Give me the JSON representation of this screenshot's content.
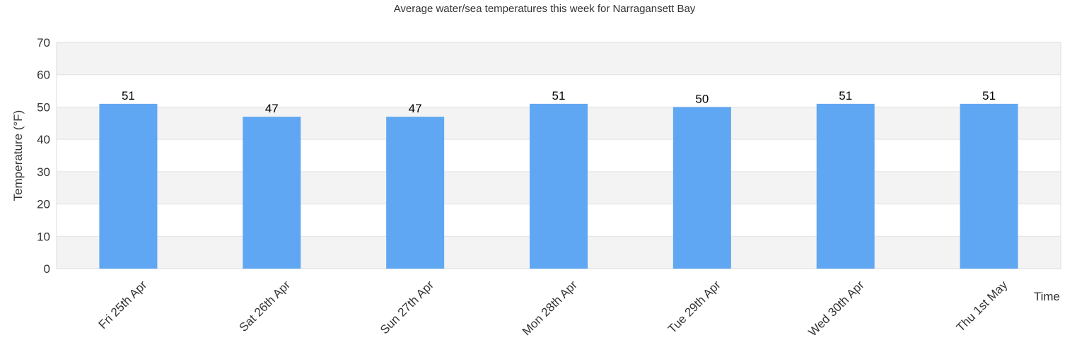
{
  "chart_data": {
    "type": "bar",
    "title": "Average water/sea temperatures this week for Narragansett Bay",
    "xlabel": "Time",
    "ylabel": "Temperature (°F)",
    "categories": [
      "Fri 25th Apr",
      "Sat 26th Apr",
      "Sun 27th Apr",
      "Mon 28th Apr",
      "Tue 29th Apr",
      "Wed 30th Apr",
      "Thu 1st May"
    ],
    "values": [
      51,
      47,
      47,
      51,
      50,
      51,
      51
    ],
    "ylim": [
      0,
      70
    ],
    "yticks": [
      0,
      10,
      20,
      30,
      40,
      50,
      60,
      70
    ],
    "grid": true,
    "bar_color": "#60a7f3",
    "band_color": "#f3f3f3"
  }
}
